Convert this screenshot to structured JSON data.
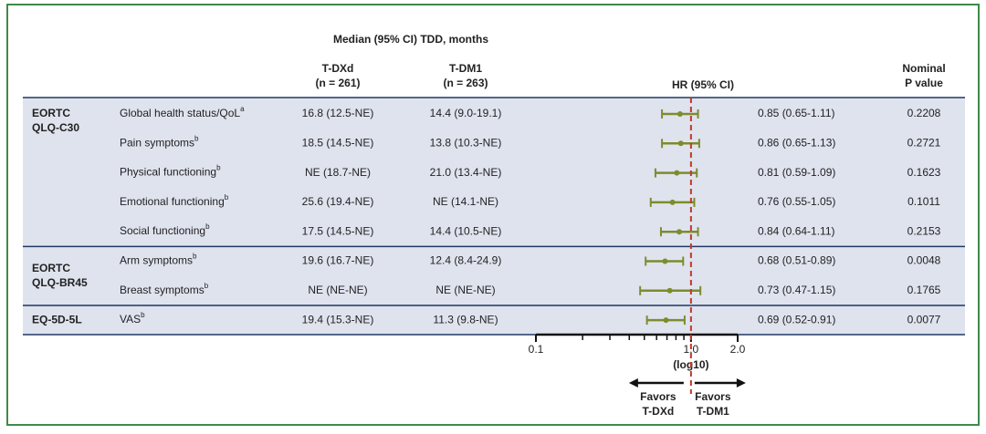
{
  "chart_data": {
    "type": "forest",
    "header": {
      "median_title": "Median (95% CI) TDD, months",
      "arm1": "T-DXd",
      "arm1_n": "(n = 261)",
      "arm2": "T-DM1",
      "arm2_n": "(n = 263)",
      "hr_title": "HR (95% CI)",
      "p_title": [
        "Nominal",
        "P value"
      ]
    },
    "groups": [
      {
        "label": [
          "EORTC",
          "QLQ-C30"
        ],
        "rows": [
          {
            "label": "Global health status/QoL",
            "sup": "a",
            "arm1": "16.8 (12.5-NE)",
            "arm2": "14.4 (9.0-19.1)",
            "hr": 0.85,
            "lo": 0.65,
            "hi": 1.11,
            "hr_label": "0.85 (0.65-1.11)",
            "p": "0.2208"
          },
          {
            "label": "Pain symptoms",
            "sup": "b",
            "arm1": "18.5 (14.5-NE)",
            "arm2": "13.8 (10.3-NE)",
            "hr": 0.86,
            "lo": 0.65,
            "hi": 1.13,
            "hr_label": "0.86 (0.65-1.13)",
            "p": "0.2721"
          },
          {
            "label": "Physical functioning",
            "sup": "b",
            "arm1": "NE (18.7-NE)",
            "arm2": "21.0 (13.4-NE)",
            "hr": 0.81,
            "lo": 0.59,
            "hi": 1.09,
            "hr_label": "0.81 (0.59-1.09)",
            "p": "0.1623"
          },
          {
            "label": "Emotional functioning",
            "sup": "b",
            "arm1": "25.6 (19.4-NE)",
            "arm2": "NE (14.1-NE)",
            "hr": 0.76,
            "lo": 0.55,
            "hi": 1.05,
            "hr_label": "0.76 (0.55-1.05)",
            "p": "0.1011"
          },
          {
            "label": "Social functioning",
            "sup": "b",
            "arm1": "17.5 (14.5-NE)",
            "arm2": "14.4 (10.5-NE)",
            "hr": 0.84,
            "lo": 0.64,
            "hi": 1.11,
            "hr_label": "0.84 (0.64-1.11)",
            "p": "0.2153"
          }
        ]
      },
      {
        "label": [
          "EORTC",
          "QLQ-BR45"
        ],
        "rows": [
          {
            "label": "Arm symptoms",
            "sup": "b",
            "arm1": "19.6 (16.7-NE)",
            "arm2": "12.4 (8.4-24.9)",
            "hr": 0.68,
            "lo": 0.51,
            "hi": 0.89,
            "hr_label": "0.68 (0.51-0.89)",
            "p": "0.0048"
          },
          {
            "label": "Breast symptoms",
            "sup": "b",
            "arm1": "NE (NE-NE)",
            "arm2": "NE (NE-NE)",
            "hr": 0.73,
            "lo": 0.47,
            "hi": 1.15,
            "hr_label": "0.73 (0.47-1.15)",
            "p": "0.1765"
          }
        ]
      },
      {
        "label": [
          "EQ-5D-5L"
        ],
        "rows": [
          {
            "label": "VAS",
            "sup": "b",
            "arm1": "19.4 (15.3-NE)",
            "arm2": "11.3 (9.8-NE)",
            "hr": 0.69,
            "lo": 0.52,
            "hi": 0.91,
            "hr_label": "0.69 (0.52-0.91)",
            "p": "0.0077"
          }
        ]
      }
    ],
    "xscale": "log",
    "xlim": [
      0.1,
      2.0
    ],
    "xticks": [
      0.1,
      {
        "value": 1,
        "label": "1.0"
      },
      {
        "value": 2,
        "label": "2.0"
      }
    ],
    "xminorticks": [
      0.2,
      0.3,
      0.4,
      0.5,
      0.6,
      0.7,
      0.8,
      0.9
    ],
    "xlabel": "(log10)",
    "refline": 1,
    "favors_left": [
      "Favors",
      "T-DXd"
    ],
    "favors_right": [
      "Favors",
      "T-DM1"
    ],
    "arm1_color": "#2e6b2e",
    "arm2_color": "#9c1f5c",
    "marker_color": "#7d8c2c",
    "refline_color": "#c0392b"
  }
}
